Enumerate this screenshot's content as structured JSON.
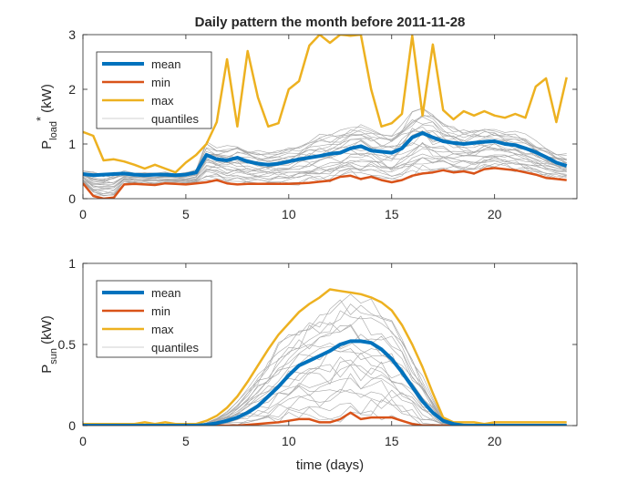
{
  "colors": {
    "mean": "#0072BD",
    "min": "#D95319",
    "max": "#EDB120",
    "quantiles": "#A6A6A6",
    "axes": "#262626"
  },
  "chart_data": [
    {
      "type": "line",
      "title": "Daily pattern the month before 2011-11-28",
      "ylabel_main": "P",
      "ylabel_sub": "load",
      "ylabel_sup": "*",
      "ylabel_units": "(kW)",
      "xlabel": "",
      "xlim": [
        0,
        24
      ],
      "ylim": [
        0,
        3
      ],
      "xticks": [
        0,
        5,
        10,
        15,
        20
      ],
      "yticks": [
        0,
        1,
        2,
        3
      ],
      "xtick_labels": [
        "0",
        "5",
        "10",
        "15",
        "20"
      ],
      "ytick_labels": [
        "0",
        "1",
        "2",
        "3"
      ],
      "legend": [
        "mean",
        "min",
        "max",
        "quantiles"
      ],
      "legend_position": "top-left",
      "x": [
        0,
        0.5,
        1,
        1.5,
        2,
        2.5,
        3,
        3.5,
        4,
        4.5,
        5,
        5.5,
        6,
        6.5,
        7,
        7.5,
        8,
        8.5,
        9,
        9.5,
        10,
        10.5,
        11,
        11.5,
        12,
        12.5,
        13,
        13.5,
        14,
        14.5,
        15,
        15.5,
        16,
        16.5,
        17,
        17.5,
        18,
        18.5,
        19,
        19.5,
        20,
        20.5,
        21,
        21.5,
        22,
        22.5,
        23,
        23.5
      ],
      "series": [
        {
          "name": "mean",
          "values": [
            0.45,
            0.43,
            0.44,
            0.45,
            0.46,
            0.44,
            0.43,
            0.44,
            0.44,
            0.43,
            0.44,
            0.48,
            0.8,
            0.72,
            0.7,
            0.75,
            0.68,
            0.64,
            0.62,
            0.64,
            0.68,
            0.72,
            0.75,
            0.78,
            0.82,
            0.84,
            0.92,
            0.96,
            0.88,
            0.86,
            0.84,
            0.92,
            1.12,
            1.2,
            1.12,
            1.05,
            1.02,
            1.0,
            1.02,
            1.04,
            1.05,
            1.0,
            0.98,
            0.92,
            0.85,
            0.76,
            0.66,
            0.6
          ]
        },
        {
          "name": "min",
          "values": [
            0.28,
            0.05,
            0.0,
            0.02,
            0.26,
            0.27,
            0.26,
            0.25,
            0.28,
            0.27,
            0.26,
            0.28,
            0.3,
            0.34,
            0.28,
            0.26,
            0.27,
            0.27,
            0.27,
            0.27,
            0.27,
            0.28,
            0.29,
            0.31,
            0.33,
            0.4,
            0.42,
            0.36,
            0.4,
            0.34,
            0.3,
            0.34,
            0.42,
            0.46,
            0.48,
            0.52,
            0.48,
            0.5,
            0.46,
            0.54,
            0.56,
            0.54,
            0.52,
            0.48,
            0.44,
            0.38,
            0.36,
            0.34
          ]
        },
        {
          "name": "max",
          "values": [
            1.22,
            1.15,
            0.7,
            0.72,
            0.68,
            0.62,
            0.55,
            0.62,
            0.55,
            0.48,
            0.66,
            0.8,
            1.0,
            1.4,
            2.55,
            1.32,
            2.7,
            1.85,
            1.32,
            1.38,
            2.0,
            2.15,
            2.8,
            3.0,
            2.85,
            3.0,
            2.98,
            3.0,
            2.0,
            1.32,
            1.38,
            1.55,
            2.98,
            1.52,
            2.82,
            1.62,
            1.45,
            1.6,
            1.52,
            1.6,
            1.52,
            1.48,
            1.55,
            1.48,
            2.05,
            2.2,
            1.4,
            2.22
          ]
        },
        {
          "name": "quantiles",
          "values": [
            0.5,
            0.48,
            0.48,
            0.49,
            0.5,
            0.48,
            0.47,
            0.48,
            0.48,
            0.47,
            0.48,
            0.55,
            1.05,
            0.95,
            0.95,
            1.0,
            0.92,
            0.88,
            0.86,
            0.9,
            0.95,
            1.0,
            1.1,
            1.15,
            1.2,
            1.25,
            1.35,
            1.4,
            1.3,
            1.25,
            1.25,
            1.4,
            1.6,
            1.7,
            1.55,
            1.4,
            1.3,
            1.25,
            1.28,
            1.3,
            1.3,
            1.25,
            1.22,
            1.15,
            1.05,
            0.95,
            0.85,
            0.8
          ]
        }
      ]
    },
    {
      "type": "line",
      "title": "",
      "ylabel_main": "P",
      "ylabel_sub": "sun",
      "ylabel_sup": "",
      "ylabel_units": "(kW)",
      "xlabel": "time (days)",
      "xlim": [
        0,
        24
      ],
      "ylim": [
        0,
        1
      ],
      "xticks": [
        0,
        5,
        10,
        15,
        20
      ],
      "yticks": [
        0,
        0.5,
        1
      ],
      "xtick_labels": [
        "0",
        "5",
        "10",
        "15",
        "20"
      ],
      "ytick_labels": [
        "0",
        "0.5",
        "1"
      ],
      "legend": [
        "mean",
        "min",
        "max",
        "quantiles"
      ],
      "legend_position": "top-left",
      "x": [
        0,
        0.5,
        1,
        1.5,
        2,
        2.5,
        3,
        3.5,
        4,
        4.5,
        5,
        5.5,
        6,
        6.5,
        7,
        7.5,
        8,
        8.5,
        9,
        9.5,
        10,
        10.5,
        11,
        11.5,
        12,
        12.5,
        13,
        13.5,
        14,
        14.5,
        15,
        15.5,
        16,
        16.5,
        17,
        17.5,
        18,
        18.5,
        19,
        19.5,
        20,
        20.5,
        21,
        21.5,
        22,
        22.5,
        23,
        23.5
      ],
      "series": [
        {
          "name": "mean",
          "values": [
            0,
            0,
            0,
            0,
            0,
            0,
            0,
            0,
            0,
            0,
            0,
            0,
            0.005,
            0.015,
            0.03,
            0.05,
            0.08,
            0.12,
            0.18,
            0.24,
            0.31,
            0.37,
            0.4,
            0.43,
            0.46,
            0.5,
            0.52,
            0.52,
            0.51,
            0.47,
            0.41,
            0.33,
            0.24,
            0.15,
            0.08,
            0.03,
            0.01,
            0,
            0,
            0,
            0,
            0,
            0,
            0,
            0,
            0,
            0,
            0
          ]
        },
        {
          "name": "min",
          "values": [
            0,
            0,
            0,
            0,
            0,
            0,
            0,
            0,
            0,
            0,
            0,
            0,
            0,
            0,
            0,
            0,
            0.005,
            0.01,
            0.015,
            0.02,
            0.03,
            0.04,
            0.04,
            0.02,
            0.02,
            0.04,
            0.08,
            0.04,
            0.05,
            0.05,
            0.05,
            0.03,
            0.01,
            0,
            0,
            0,
            0,
            0,
            0,
            0,
            0,
            0,
            0,
            0,
            0,
            0,
            0,
            0
          ]
        },
        {
          "name": "max",
          "values": [
            0.01,
            0.01,
            0.01,
            0.01,
            0.01,
            0.01,
            0.02,
            0.01,
            0.02,
            0.01,
            0.01,
            0.01,
            0.03,
            0.06,
            0.11,
            0.18,
            0.27,
            0.37,
            0.47,
            0.56,
            0.63,
            0.7,
            0.75,
            0.79,
            0.84,
            0.83,
            0.82,
            0.81,
            0.79,
            0.76,
            0.71,
            0.62,
            0.5,
            0.36,
            0.2,
            0.05,
            0.02,
            0.02,
            0.02,
            0.01,
            0.02,
            0.02,
            0.02,
            0.02,
            0.02,
            0.02,
            0.02,
            0.02
          ]
        },
        {
          "name": "quantiles",
          "values": [
            0,
            0,
            0,
            0,
            0,
            0,
            0,
            0,
            0,
            0,
            0,
            0,
            0.02,
            0.05,
            0.09,
            0.15,
            0.23,
            0.32,
            0.41,
            0.5,
            0.57,
            0.63,
            0.68,
            0.72,
            0.76,
            0.78,
            0.79,
            0.78,
            0.76,
            0.72,
            0.66,
            0.56,
            0.44,
            0.3,
            0.17,
            0.04,
            0.01,
            0.01,
            0.01,
            0,
            0,
            0,
            0,
            0,
            0,
            0,
            0,
            0
          ]
        }
      ]
    }
  ]
}
